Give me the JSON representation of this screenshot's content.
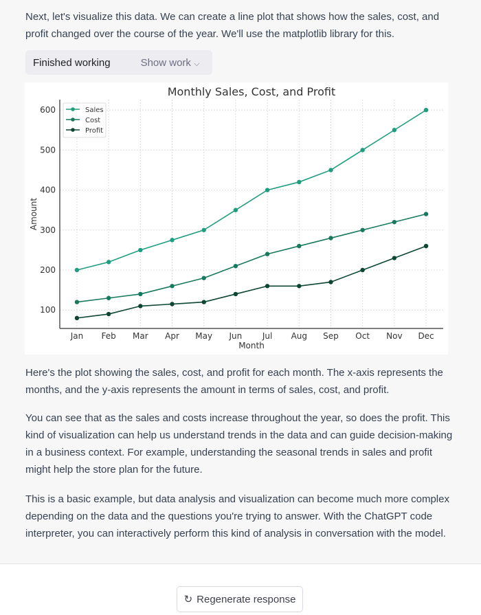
{
  "intro": "Next, let's visualize this data. We can create a line plot that shows how the sales, cost, and profit changed over the course of the year. We'll use the matplotlib library for this.",
  "work": {
    "status": "Finished working",
    "show_label": "Show work"
  },
  "paragraphs": [
    "Here's the plot showing the sales, cost, and profit for each month. The x-axis represents the months, and the y-axis represents the amount in terms of sales, cost, and profit.",
    "You can see that as the sales and costs increase throughout the year, so does the profit. This kind of visualization can help us understand trends in the data and can guide decision-making in a business context. For example, understanding the seasonal trends in sales and profit might help the store plan for the future.",
    "This is a basic example, but data analysis and visualization can become much more complex depending on the data and the questions you're trying to answer. With the ChatGPT code interpreter, you can interactively perform this kind of analysis in conversation with the model."
  ],
  "regenerate_label": "Regenerate response",
  "chart_data": {
    "type": "line",
    "title": "Monthly Sales, Cost, and Profit",
    "xlabel": "Month",
    "ylabel": "Amount",
    "categories": [
      "Jan",
      "Feb",
      "Mar",
      "Apr",
      "May",
      "Jun",
      "Jul",
      "Aug",
      "Sep",
      "Oct",
      "Nov",
      "Dec"
    ],
    "yticks": [
      100,
      200,
      300,
      400,
      500,
      600
    ],
    "ylim": [
      54,
      626
    ],
    "grid": true,
    "legend": "top-left",
    "series": [
      {
        "name": "Sales",
        "color": "#1f9e7f",
        "values": [
          200,
          220,
          250,
          275,
          300,
          350,
          400,
          420,
          450,
          500,
          550,
          600
        ]
      },
      {
        "name": "Cost",
        "color": "#177a5f",
        "values": [
          120,
          130,
          140,
          160,
          180,
          210,
          240,
          260,
          280,
          300,
          320,
          340
        ]
      },
      {
        "name": "Profit",
        "color": "#0d4634",
        "values": [
          80,
          90,
          110,
          115,
          120,
          140,
          160,
          160,
          170,
          200,
          230,
          260
        ]
      }
    ]
  }
}
